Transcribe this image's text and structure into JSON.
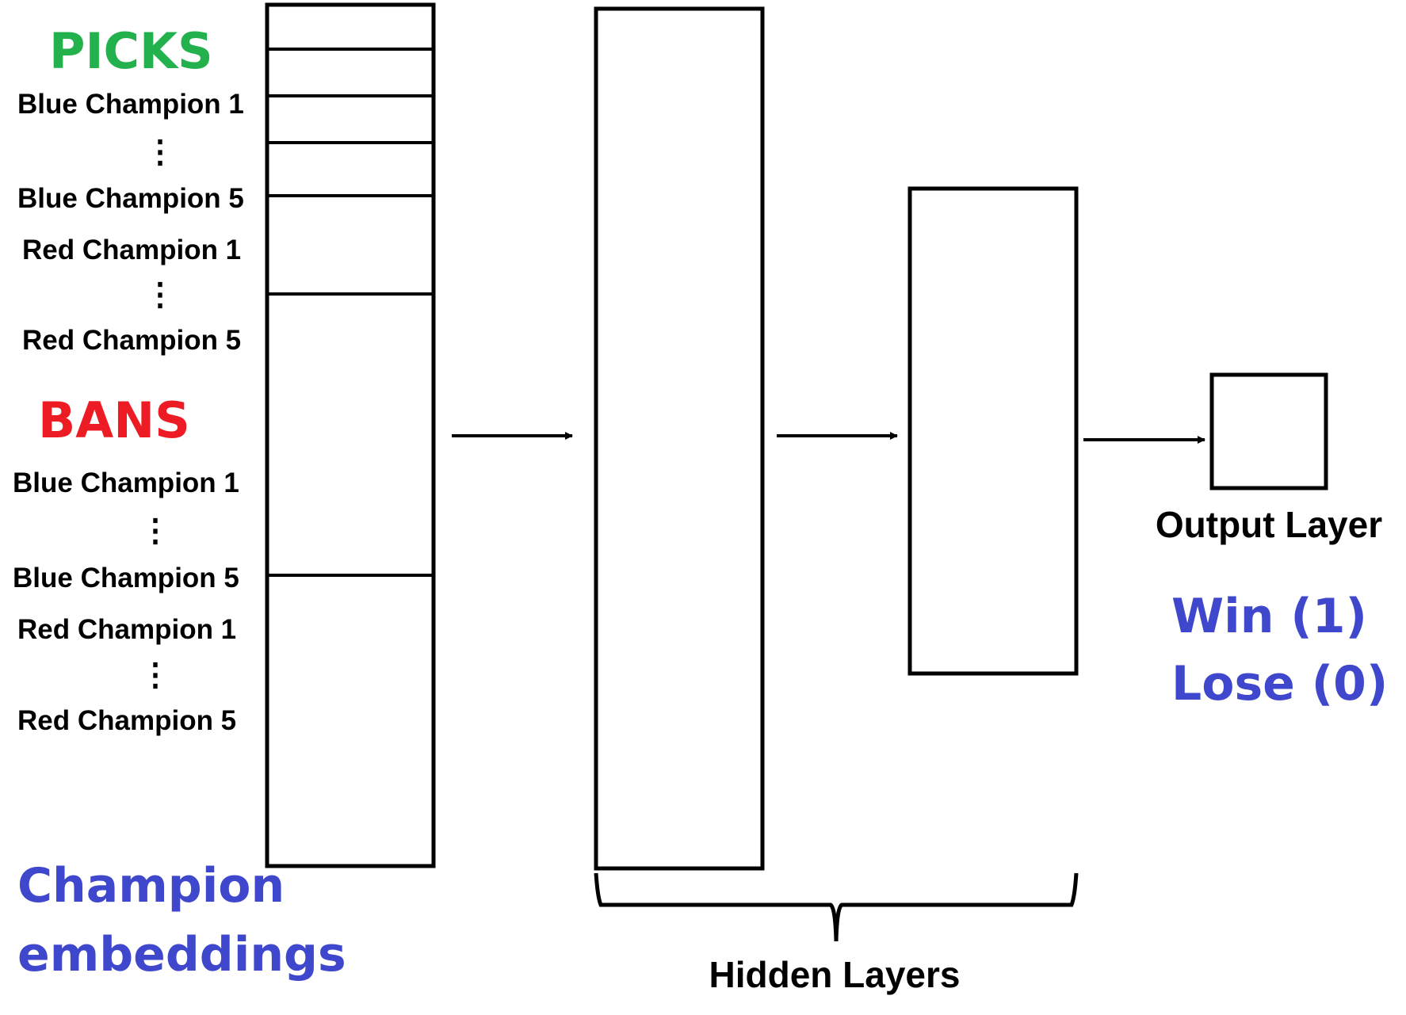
{
  "picks": {
    "heading": "PICKS",
    "heading_color": "#22b14c",
    "items": [
      "Blue Champion 1",
      "⋮",
      "Blue Champion 5",
      "Red Champion 1",
      "⋮",
      "Red Champion 5"
    ]
  },
  "bans": {
    "heading": "BANS",
    "heading_color": "#ed1c24",
    "items": [
      "Blue Champion 1",
      "⋮",
      "Blue Champion 5",
      "Red Champion 1",
      "⋮",
      "Red Champion 5"
    ]
  },
  "embeddings": {
    "line1": "Champion",
    "line2": "embeddings",
    "color": "#3f48cc"
  },
  "hidden_layers": {
    "label": "Hidden Layers"
  },
  "output_layer": {
    "label": "Output Layer",
    "win": "Win (1)",
    "lose": "Lose (0)",
    "color": "#3f48cc"
  }
}
